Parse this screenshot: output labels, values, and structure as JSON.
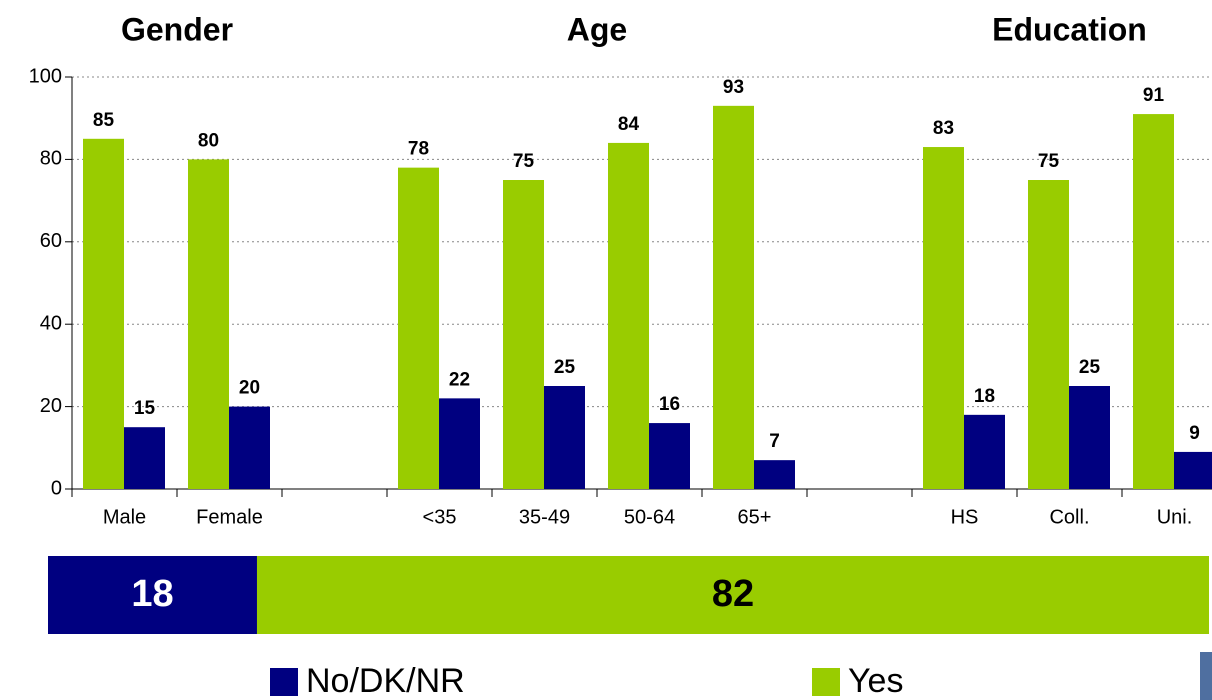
{
  "chart_data": [
    {
      "type": "grouped_bar",
      "group_titles": [
        "Gender",
        "Age",
        "Education"
      ],
      "categories": [
        "Male",
        "Female",
        null,
        "<35",
        "35-49",
        "50-64",
        "65+",
        null,
        "HS",
        "Coll.",
        "Uni."
      ],
      "series": [
        {
          "name": "Yes",
          "color": "#99cc00",
          "values": [
            85,
            80,
            null,
            78,
            75,
            84,
            93,
            null,
            83,
            75,
            91
          ]
        },
        {
          "name": "No/DK/NR",
          "color": "#000080",
          "values": [
            15,
            20,
            null,
            22,
            25,
            16,
            7,
            null,
            18,
            25,
            9
          ]
        }
      ],
      "ylim": [
        0,
        100
      ],
      "yticks": [
        0,
        20,
        40,
        60,
        80,
        100
      ],
      "grid": true
    },
    {
      "type": "stacked_bar",
      "series": [
        {
          "name": "No/DK/NR",
          "color": "#000080",
          "values": [
            18
          ]
        },
        {
          "name": "Yes",
          "color": "#99cc00",
          "values": [
            82
          ]
        }
      ],
      "xlim": [
        0,
        100
      ]
    }
  ]
}
